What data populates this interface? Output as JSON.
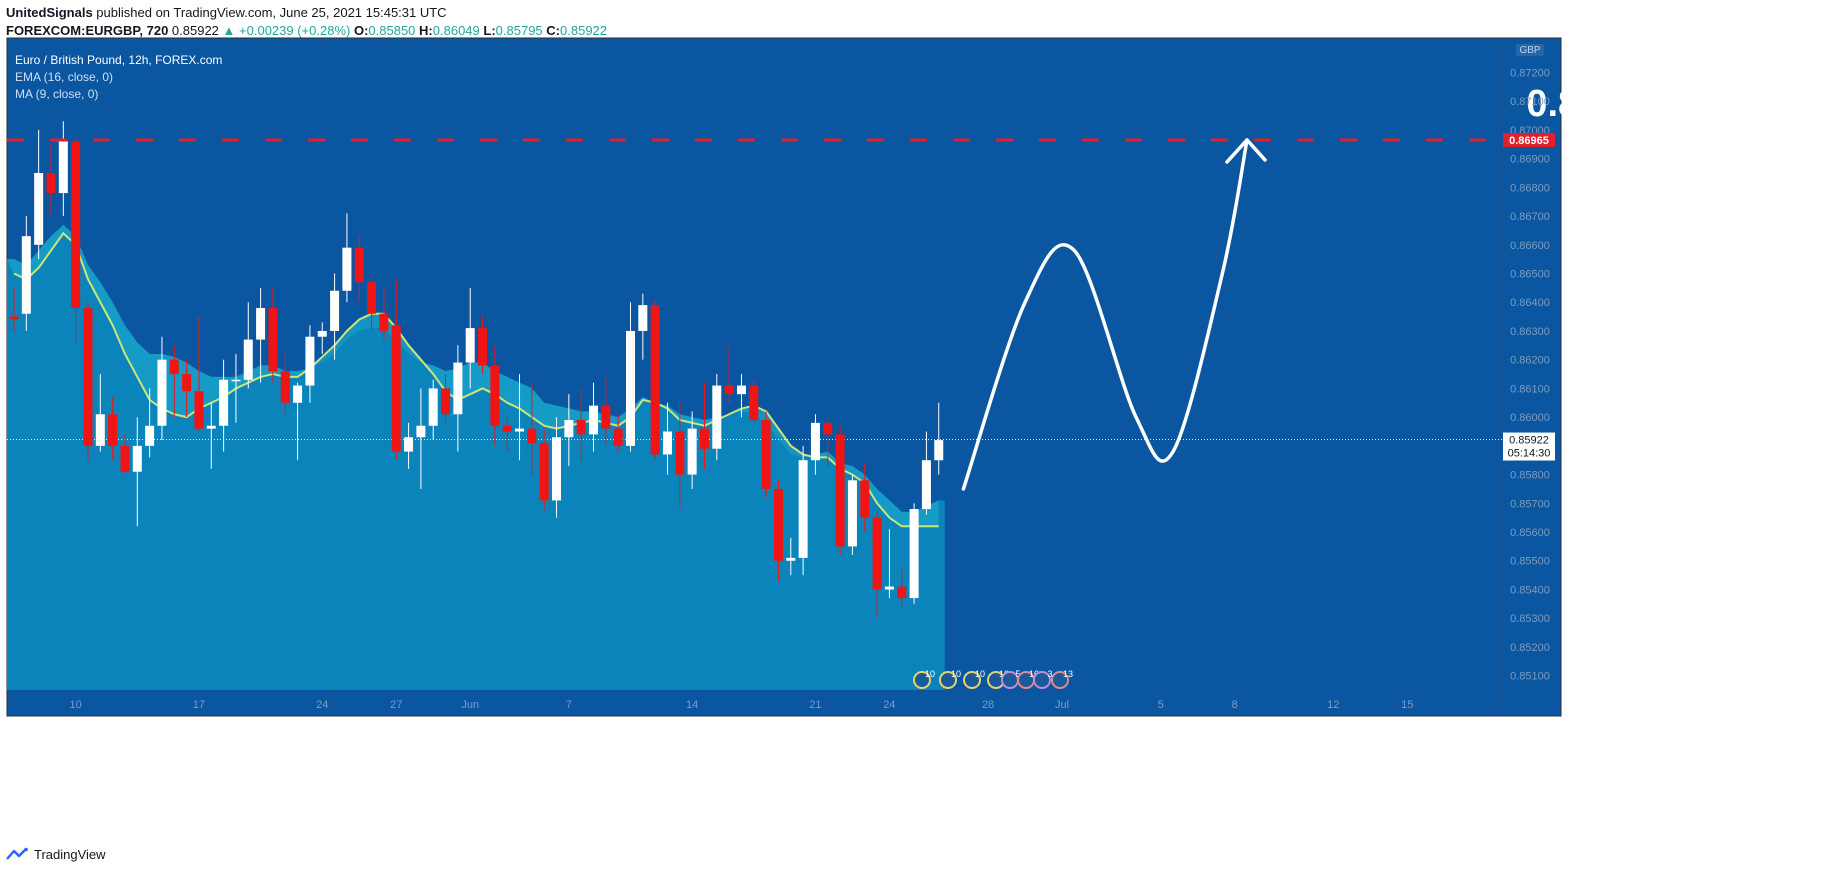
{
  "header": {
    "publisher": "UnitedSignals",
    "published_text": " published on TradingView.com, June 25, 2021 15:45:31 UTC",
    "symbol": "FOREXCOM:EURGBP, 720",
    "last": "0.85922",
    "change": "▲ +0.00239 (+0.28%)",
    "o_label": "O:",
    "o_val": "0.85850",
    "h_label": "H:",
    "h_val": "0.86049",
    "l_label": "L:",
    "l_val": "0.85795",
    "c_label": "C:",
    "c_val": "0.85922"
  },
  "legend": {
    "title": "Euro / British Pound, 12h, FOREX.com",
    "ema": "EMA (16, close, 0)",
    "ma": "MA (9, close, 0)"
  },
  "footer": {
    "brand": "TradingView",
    "icon": "tradingview-logo-icon"
  },
  "colors": {
    "background": "#0a56a0",
    "area_fill": "#0a84bb",
    "ema_band": "#189fc8",
    "ma_line": "#cde577",
    "up_candle": "#ffffff",
    "down_candle": "#f01414",
    "target_line": "#e0202a",
    "projection": "#ffffff"
  },
  "chart_data": {
    "type": "candlestick",
    "currency_label": "GBP",
    "ylim": [
      0.8505,
      0.8732
    ],
    "y_ticks": [
      "0.87300",
      "0.87200",
      "0.87100",
      "0.87000",
      "0.86900",
      "0.86800",
      "0.86700",
      "0.86600",
      "0.86500",
      "0.86400",
      "0.86300",
      "0.86200",
      "0.86100",
      "0.86000",
      "0.85900",
      "0.85800",
      "0.85700",
      "0.85600",
      "0.85500",
      "0.85400",
      "0.85300",
      "0.85200",
      "0.85100"
    ],
    "x_ticks": [
      {
        "label": "10",
        "i": 5
      },
      {
        "label": "17",
        "i": 15
      },
      {
        "label": "24",
        "i": 25
      },
      {
        "label": "27",
        "i": 31
      },
      {
        "label": "Jun",
        "i": 37
      },
      {
        "label": "7",
        "i": 45
      },
      {
        "label": "14",
        "i": 55
      },
      {
        "label": "21",
        "i": 65
      },
      {
        "label": "24",
        "i": 71
      },
      {
        "label": "28",
        "i": 79
      },
      {
        "label": "Jul",
        "i": 85
      },
      {
        "label": "5",
        "i": 93
      },
      {
        "label": "8",
        "i": 99
      },
      {
        "label": "12",
        "i": 107
      },
      {
        "label": "15",
        "i": 113
      }
    ],
    "target": {
      "value": 0.86965,
      "label": "0.86965"
    },
    "current": {
      "value": 0.85922,
      "label": "0.85922",
      "countdown": "05:14:30"
    },
    "candles": [
      {
        "o": 0.8635,
        "h": 0.8645,
        "l": 0.863,
        "c": 0.8634
      },
      {
        "o": 0.8636,
        "h": 0.867,
        "l": 0.863,
        "c": 0.8663
      },
      {
        "o": 0.866,
        "h": 0.87,
        "l": 0.8655,
        "c": 0.8685
      },
      {
        "o": 0.8685,
        "h": 0.8695,
        "l": 0.867,
        "c": 0.8678
      },
      {
        "o": 0.8678,
        "h": 0.8703,
        "l": 0.867,
        "c": 0.8696
      },
      {
        "o": 0.8696,
        "h": 0.8698,
        "l": 0.8625,
        "c": 0.8638
      },
      {
        "o": 0.8638,
        "h": 0.864,
        "l": 0.8585,
        "c": 0.859
      },
      {
        "o": 0.859,
        "h": 0.8615,
        "l": 0.8588,
        "c": 0.8601
      },
      {
        "o": 0.8601,
        "h": 0.8607,
        "l": 0.8585,
        "c": 0.859
      },
      {
        "o": 0.859,
        "h": 0.8594,
        "l": 0.858,
        "c": 0.8581
      },
      {
        "o": 0.8581,
        "h": 0.86,
        "l": 0.8562,
        "c": 0.859
      },
      {
        "o": 0.859,
        "h": 0.861,
        "l": 0.8586,
        "c": 0.8597
      },
      {
        "o": 0.8597,
        "h": 0.8628,
        "l": 0.8592,
        "c": 0.862
      },
      {
        "o": 0.862,
        "h": 0.8625,
        "l": 0.86,
        "c": 0.8615
      },
      {
        "o": 0.8615,
        "h": 0.862,
        "l": 0.86,
        "c": 0.8609
      },
      {
        "o": 0.8609,
        "h": 0.8635,
        "l": 0.8595,
        "c": 0.8596
      },
      {
        "o": 0.8596,
        "h": 0.8605,
        "l": 0.8582,
        "c": 0.8597
      },
      {
        "o": 0.8597,
        "h": 0.862,
        "l": 0.8588,
        "c": 0.8613
      },
      {
        "o": 0.8613,
        "h": 0.8622,
        "l": 0.8598,
        "c": 0.8613
      },
      {
        "o": 0.8613,
        "h": 0.864,
        "l": 0.861,
        "c": 0.8627
      },
      {
        "o": 0.8627,
        "h": 0.8645,
        "l": 0.8612,
        "c": 0.8638
      },
      {
        "o": 0.8638,
        "h": 0.8645,
        "l": 0.8612,
        "c": 0.8616
      },
      {
        "o": 0.8616,
        "h": 0.8622,
        "l": 0.86,
        "c": 0.8605
      },
      {
        "o": 0.8605,
        "h": 0.8612,
        "l": 0.8585,
        "c": 0.8611
      },
      {
        "o": 0.8611,
        "h": 0.8632,
        "l": 0.8605,
        "c": 0.8628
      },
      {
        "o": 0.8628,
        "h": 0.8633,
        "l": 0.8622,
        "c": 0.863
      },
      {
        "o": 0.863,
        "h": 0.865,
        "l": 0.862,
        "c": 0.8644
      },
      {
        "o": 0.8644,
        "h": 0.8671,
        "l": 0.864,
        "c": 0.8659
      },
      {
        "o": 0.8659,
        "h": 0.8663,
        "l": 0.864,
        "c": 0.8647
      },
      {
        "o": 0.8647,
        "h": 0.865,
        "l": 0.863,
        "c": 0.8636
      },
      {
        "o": 0.8636,
        "h": 0.8645,
        "l": 0.8627,
        "c": 0.863
      },
      {
        "o": 0.8632,
        "h": 0.8648,
        "l": 0.8585,
        "c": 0.8588
      },
      {
        "o": 0.8588,
        "h": 0.8598,
        "l": 0.8582,
        "c": 0.8593
      },
      {
        "o": 0.8593,
        "h": 0.861,
        "l": 0.8575,
        "c": 0.8597
      },
      {
        "o": 0.8597,
        "h": 0.8613,
        "l": 0.8592,
        "c": 0.861
      },
      {
        "o": 0.861,
        "h": 0.8615,
        "l": 0.8597,
        "c": 0.8601
      },
      {
        "o": 0.8601,
        "h": 0.8625,
        "l": 0.8588,
        "c": 0.8619
      },
      {
        "o": 0.8619,
        "h": 0.8645,
        "l": 0.861,
        "c": 0.8631
      },
      {
        "o": 0.8631,
        "h": 0.8635,
        "l": 0.8615,
        "c": 0.8618
      },
      {
        "o": 0.8618,
        "h": 0.8625,
        "l": 0.859,
        "c": 0.8597
      },
      {
        "o": 0.8597,
        "h": 0.86,
        "l": 0.8588,
        "c": 0.8595
      },
      {
        "o": 0.8595,
        "h": 0.8615,
        "l": 0.8585,
        "c": 0.8596
      },
      {
        "o": 0.8596,
        "h": 0.8612,
        "l": 0.858,
        "c": 0.8591
      },
      {
        "o": 0.8591,
        "h": 0.8596,
        "l": 0.8568,
        "c": 0.8571
      },
      {
        "o": 0.8571,
        "h": 0.86,
        "l": 0.8565,
        "c": 0.8593
      },
      {
        "o": 0.8593,
        "h": 0.8608,
        "l": 0.8583,
        "c": 0.8599
      },
      {
        "o": 0.8599,
        "h": 0.861,
        "l": 0.8585,
        "c": 0.8594
      },
      {
        "o": 0.8594,
        "h": 0.8612,
        "l": 0.8588,
        "c": 0.8604
      },
      {
        "o": 0.8604,
        "h": 0.8614,
        "l": 0.859,
        "c": 0.8596
      },
      {
        "o": 0.8596,
        "h": 0.8601,
        "l": 0.8588,
        "c": 0.859
      },
      {
        "o": 0.859,
        "h": 0.864,
        "l": 0.8588,
        "c": 0.863
      },
      {
        "o": 0.863,
        "h": 0.8643,
        "l": 0.862,
        "c": 0.8639
      },
      {
        "o": 0.8639,
        "h": 0.8641,
        "l": 0.8585,
        "c": 0.8587
      },
      {
        "o": 0.8587,
        "h": 0.8605,
        "l": 0.858,
        "c": 0.8595
      },
      {
        "o": 0.8595,
        "h": 0.8605,
        "l": 0.8568,
        "c": 0.858
      },
      {
        "o": 0.858,
        "h": 0.8602,
        "l": 0.8575,
        "c": 0.8596
      },
      {
        "o": 0.8596,
        "h": 0.8612,
        "l": 0.8582,
        "c": 0.8589
      },
      {
        "o": 0.8589,
        "h": 0.8615,
        "l": 0.8585,
        "c": 0.8611
      },
      {
        "o": 0.8611,
        "h": 0.8625,
        "l": 0.8605,
        "c": 0.8608
      },
      {
        "o": 0.8608,
        "h": 0.8615,
        "l": 0.86,
        "c": 0.8611
      },
      {
        "o": 0.8611,
        "h": 0.8613,
        "l": 0.8598,
        "c": 0.8599
      },
      {
        "o": 0.8599,
        "h": 0.8602,
        "l": 0.8572,
        "c": 0.8575
      },
      {
        "o": 0.8575,
        "h": 0.8578,
        "l": 0.8543,
        "c": 0.855
      },
      {
        "o": 0.855,
        "h": 0.8558,
        "l": 0.8545,
        "c": 0.8551
      },
      {
        "o": 0.8551,
        "h": 0.859,
        "l": 0.8545,
        "c": 0.8585
      },
      {
        "o": 0.8585,
        "h": 0.8601,
        "l": 0.858,
        "c": 0.8598
      },
      {
        "o": 0.8598,
        "h": 0.86,
        "l": 0.8583,
        "c": 0.8594
      },
      {
        "o": 0.8594,
        "h": 0.8597,
        "l": 0.8552,
        "c": 0.8555
      },
      {
        "o": 0.8555,
        "h": 0.858,
        "l": 0.8552,
        "c": 0.8578
      },
      {
        "o": 0.8578,
        "h": 0.8584,
        "l": 0.856,
        "c": 0.8565
      },
      {
        "o": 0.8565,
        "h": 0.8567,
        "l": 0.853,
        "c": 0.854
      },
      {
        "o": 0.854,
        "h": 0.8561,
        "l": 0.8537,
        "c": 0.8541
      },
      {
        "o": 0.8541,
        "h": 0.8547,
        "l": 0.8534,
        "c": 0.8537
      },
      {
        "o": 0.8537,
        "h": 0.857,
        "l": 0.8535,
        "c": 0.8568
      },
      {
        "o": 0.8568,
        "h": 0.8595,
        "l": 0.8566,
        "c": 0.8585
      },
      {
        "o": 0.8585,
        "h": 0.8605,
        "l": 0.858,
        "c": 0.8592
      }
    ],
    "ema16": [
      0.8655,
      0.8653,
      0.8658,
      0.8663,
      0.8667,
      0.8663,
      0.8653,
      0.8647,
      0.864,
      0.8632,
      0.8626,
      0.8622,
      0.8622,
      0.8621,
      0.8619,
      0.8616,
      0.8614,
      0.8614,
      0.8614,
      0.8616,
      0.8618,
      0.8618,
      0.8616,
      0.8616,
      0.8617,
      0.8619,
      0.8622,
      0.8627,
      0.863,
      0.8631,
      0.8631,
      0.8626,
      0.8622,
      0.8619,
      0.8618,
      0.8616,
      0.8617,
      0.8619,
      0.8619,
      0.8616,
      0.8614,
      0.8612,
      0.861,
      0.8605,
      0.8604,
      0.8603,
      0.8602,
      0.8602,
      0.8601,
      0.86,
      0.8603,
      0.8607,
      0.8605,
      0.8604,
      0.8601,
      0.86,
      0.8599,
      0.86,
      0.8601,
      0.8602,
      0.8601,
      0.8598,
      0.8592,
      0.8587,
      0.8586,
      0.8587,
      0.8588,
      0.8584,
      0.8583,
      0.858,
      0.8575,
      0.8571,
      0.8567,
      0.8567,
      0.8569,
      0.8571
    ],
    "ma9": [
      0.865,
      0.8648,
      0.8652,
      0.8658,
      0.8664,
      0.866,
      0.8648,
      0.864,
      0.8632,
      0.8622,
      0.8614,
      0.8606,
      0.8603,
      0.8601,
      0.86,
      0.8603,
      0.8605,
      0.8607,
      0.861,
      0.8612,
      0.8614,
      0.8615,
      0.8614,
      0.8614,
      0.8617,
      0.8621,
      0.8625,
      0.863,
      0.8634,
      0.8636,
      0.8636,
      0.8631,
      0.8625,
      0.862,
      0.8615,
      0.8609,
      0.8606,
      0.8608,
      0.861,
      0.8608,
      0.8605,
      0.8603,
      0.86,
      0.8597,
      0.8596,
      0.8597,
      0.8598,
      0.8599,
      0.8598,
      0.8597,
      0.86,
      0.8606,
      0.8605,
      0.8603,
      0.8599,
      0.8598,
      0.8597,
      0.8599,
      0.8601,
      0.8603,
      0.8604,
      0.8602,
      0.8596,
      0.859,
      0.8587,
      0.8586,
      0.8586,
      0.8582,
      0.858,
      0.8577,
      0.857,
      0.8565,
      0.8562,
      0.8562,
      0.8562,
      0.8562
    ],
    "projection": [
      {
        "i": 77,
        "v": 0.8575
      },
      {
        "i": 82,
        "v": 0.864
      },
      {
        "i": 86,
        "v": 0.8658
      },
      {
        "i": 91,
        "v": 0.86
      },
      {
        "i": 94,
        "v": 0.8588
      },
      {
        "i": 98,
        "v": 0.865
      },
      {
        "i": 100,
        "v": 0.86965
      }
    ],
    "event_markers": [
      "10",
      "10",
      "10",
      "10",
      "5",
      "16",
      "3",
      "13"
    ]
  }
}
